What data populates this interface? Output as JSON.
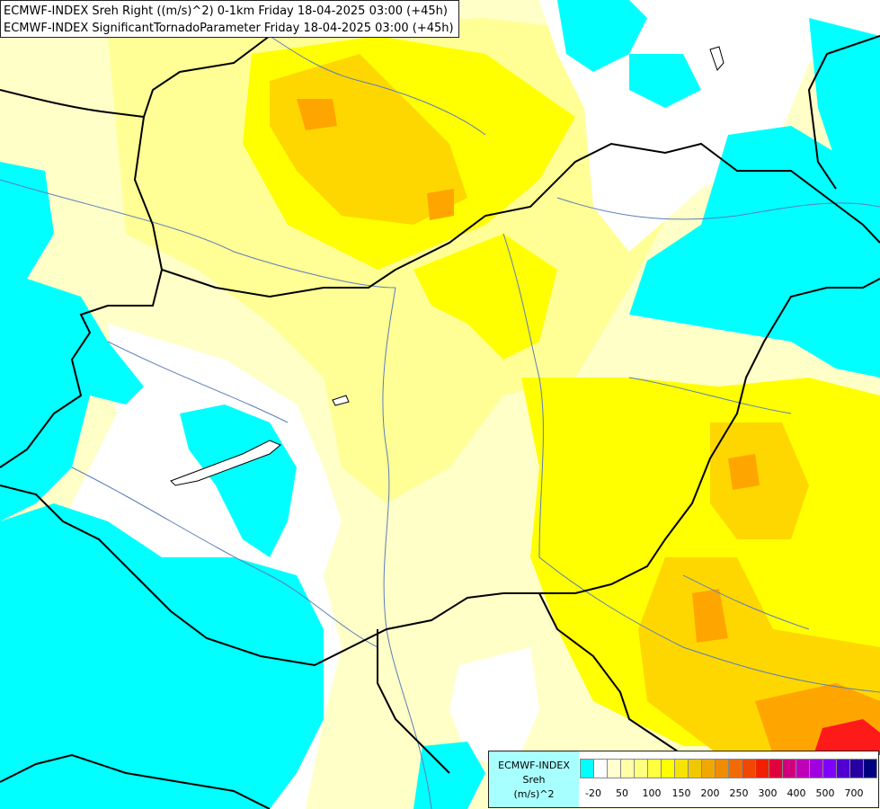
{
  "title": {
    "line1": "ECMWF-INDEX Sreh Right ((m/s)^2) 0-1km Friday 18-04-2025 03:00 (+45h)",
    "line2": "ECMWF-INDEX SignificantTornadoParameter Friday 18-04-2025 03:00 (+45h)"
  },
  "legend": {
    "model": "ECMWF-INDEX",
    "variable": "Sreh",
    "unit": "(m/s)^2",
    "colors": [
      "#00ffff",
      "#ffffff",
      "#ffffd0",
      "#ffffa8",
      "#ffff80",
      "#ffff40",
      "#ffff00",
      "#f5e400",
      "#f0c800",
      "#f0a800",
      "#f08c00",
      "#f06c00",
      "#f04800",
      "#f02000",
      "#e0003c",
      "#d0007c",
      "#c000b8",
      "#a000e0",
      "#8000ff",
      "#5000d0",
      "#2800a0",
      "#000080"
    ],
    "ticks": [
      "-20",
      "50",
      "100",
      "150",
      "200",
      "250",
      "300",
      "400",
      "500",
      "700"
    ]
  },
  "colors": {
    "cyan": "#00ffff",
    "white": "#ffffff",
    "pale_yellow": "#ffffc8",
    "light_yellow": "#ffff96",
    "yellow": "#ffff00",
    "gold": "#ffd700",
    "orange": "#ffa500",
    "red": "#ff1a1a",
    "border": "#000000",
    "river": "#5b7db8"
  }
}
